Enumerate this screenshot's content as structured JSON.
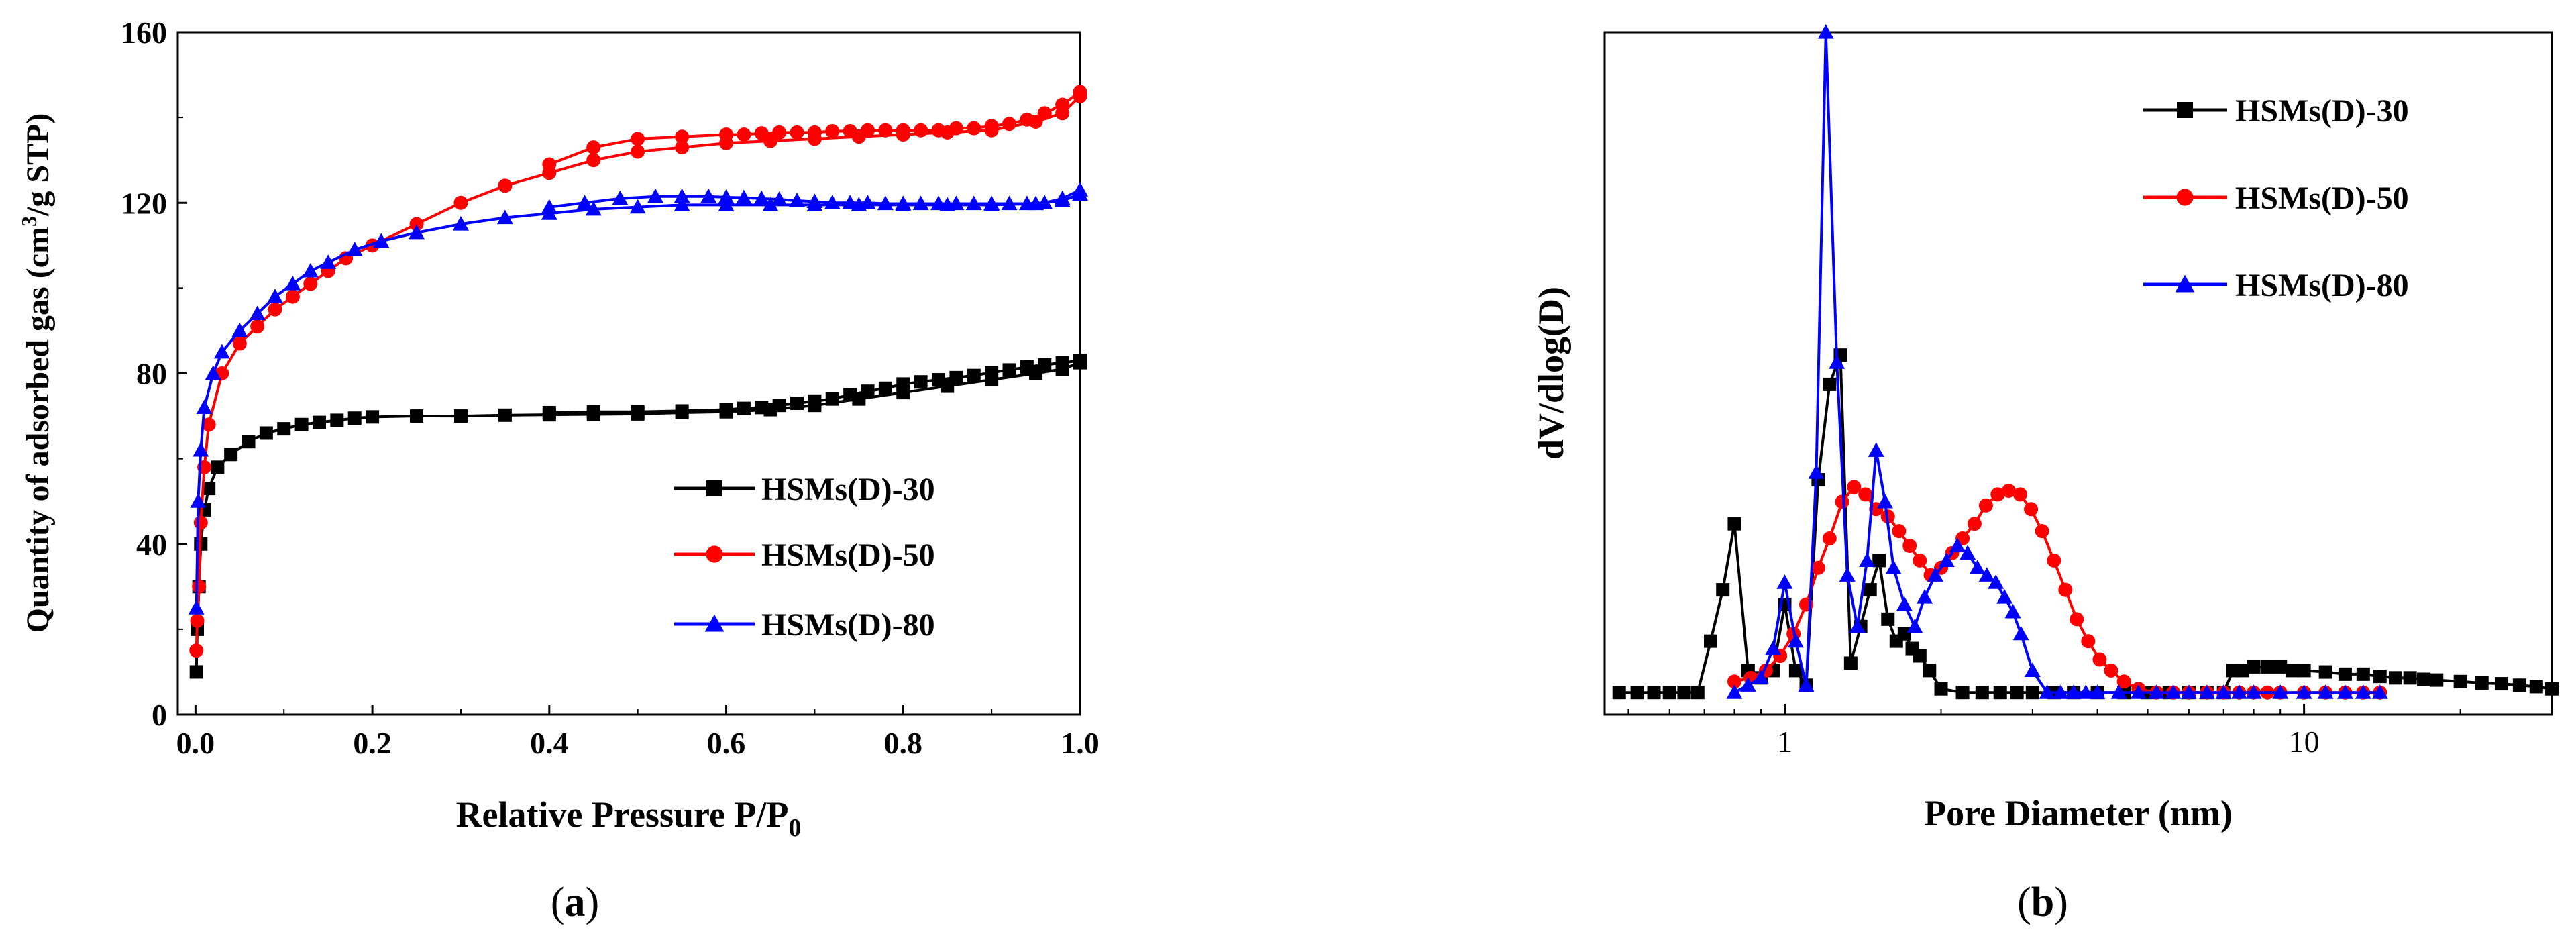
{
  "chart_data": [
    {
      "type": "line",
      "title": "",
      "panel_label": "(a)",
      "panel_letter": "a",
      "xlabel_main": "Relative Pressure P/P",
      "xlabel_sub": "0",
      "ylabel_pre": "Quantity of adsorbed gas (cm",
      "ylabel_sup": "3",
      "ylabel_post": "/g STP)",
      "xlim": [
        -0.02,
        1.0
      ],
      "ylim": [
        0,
        160
      ],
      "xticks": [
        0.0,
        0.2,
        0.4,
        0.6,
        0.8,
        1.0
      ],
      "xtick_labels": [
        "0.0",
        "0.2",
        "0.4",
        "0.6",
        "0.8",
        "1.0"
      ],
      "yticks": [
        0,
        40,
        80,
        120,
        160
      ],
      "ytick_labels": [
        "0",
        "40",
        "80",
        "120",
        "160"
      ],
      "legend_position": "lower-right",
      "series": [
        {
          "name": "HSMs(D)-30",
          "color": "#000000",
          "marker": "square",
          "adsorption": [
            [
              0.001,
              10
            ],
            [
              0.002,
              20
            ],
            [
              0.004,
              30
            ],
            [
              0.006,
              40
            ],
            [
              0.01,
              48
            ],
            [
              0.015,
              53
            ],
            [
              0.025,
              58
            ],
            [
              0.04,
              61
            ],
            [
              0.06,
              64
            ],
            [
              0.08,
              66
            ],
            [
              0.1,
              67
            ],
            [
              0.12,
              68
            ],
            [
              0.14,
              68.5
            ],
            [
              0.16,
              69
            ],
            [
              0.18,
              69.5
            ],
            [
              0.2,
              69.8
            ],
            [
              0.25,
              70
            ],
            [
              0.3,
              70
            ],
            [
              0.35,
              70.2
            ],
            [
              0.4,
              70.3
            ],
            [
              0.45,
              70.4
            ],
            [
              0.5,
              70.5
            ],
            [
              0.55,
              70.8
            ],
            [
              0.6,
              71
            ],
            [
              0.65,
              71.5
            ],
            [
              0.7,
              72.5
            ],
            [
              0.75,
              74
            ],
            [
              0.8,
              75.5
            ],
            [
              0.85,
              77
            ],
            [
              0.9,
              78.5
            ],
            [
              0.95,
              80
            ],
            [
              0.98,
              81
            ],
            [
              1.0,
              82.5
            ]
          ],
          "desorption": [
            [
              1.0,
              83
            ],
            [
              0.98,
              82.5
            ],
            [
              0.96,
              82
            ],
            [
              0.94,
              81.5
            ],
            [
              0.92,
              80.8
            ],
            [
              0.9,
              80.2
            ],
            [
              0.88,
              79.5
            ],
            [
              0.86,
              79
            ],
            [
              0.84,
              78.5
            ],
            [
              0.82,
              78
            ],
            [
              0.8,
              77.5
            ],
            [
              0.78,
              76.5
            ],
            [
              0.76,
              75.8
            ],
            [
              0.74,
              75
            ],
            [
              0.72,
              74
            ],
            [
              0.7,
              73.5
            ],
            [
              0.68,
              73
            ],
            [
              0.66,
              72.5
            ],
            [
              0.64,
              72
            ],
            [
              0.62,
              71.8
            ],
            [
              0.6,
              71.5
            ],
            [
              0.55,
              71.2
            ],
            [
              0.5,
              71
            ],
            [
              0.45,
              71
            ],
            [
              0.4,
              70.8
            ]
          ]
        },
        {
          "name": "HSMs(D)-50",
          "color": "#ff0000",
          "marker": "circle",
          "adsorption": [
            [
              0.001,
              15
            ],
            [
              0.002,
              22
            ],
            [
              0.004,
              30
            ],
            [
              0.006,
              45
            ],
            [
              0.01,
              58
            ],
            [
              0.015,
              68
            ],
            [
              0.03,
              80
            ],
            [
              0.05,
              87
            ],
            [
              0.07,
              91
            ],
            [
              0.09,
              95
            ],
            [
              0.11,
              98
            ],
            [
              0.13,
              101
            ],
            [
              0.15,
              104
            ],
            [
              0.17,
              107
            ],
            [
              0.2,
              110
            ],
            [
              0.25,
              115
            ],
            [
              0.3,
              120
            ],
            [
              0.35,
              124
            ],
            [
              0.4,
              127
            ],
            [
              0.45,
              130
            ],
            [
              0.5,
              132
            ],
            [
              0.55,
              133
            ],
            [
              0.6,
              134
            ],
            [
              0.65,
              134.5
            ],
            [
              0.7,
              135
            ],
            [
              0.75,
              135.5
            ],
            [
              0.8,
              136
            ],
            [
              0.85,
              136.5
            ],
            [
              0.9,
              137
            ],
            [
              0.95,
              139
            ],
            [
              0.98,
              141
            ],
            [
              1.0,
              145
            ]
          ],
          "desorption": [
            [
              1.0,
              146
            ],
            [
              0.98,
              143
            ],
            [
              0.96,
              141
            ],
            [
              0.94,
              139.5
            ],
            [
              0.92,
              138.5
            ],
            [
              0.9,
              138
            ],
            [
              0.88,
              137.5
            ],
            [
              0.86,
              137.5
            ],
            [
              0.84,
              137
            ],
            [
              0.82,
              137
            ],
            [
              0.8,
              137
            ],
            [
              0.78,
              137
            ],
            [
              0.76,
              137
            ],
            [
              0.74,
              136.8
            ],
            [
              0.72,
              136.8
            ],
            [
              0.7,
              136.5
            ],
            [
              0.68,
              136.5
            ],
            [
              0.66,
              136.5
            ],
            [
              0.64,
              136.3
            ],
            [
              0.62,
              136
            ],
            [
              0.6,
              136
            ],
            [
              0.55,
              135.5
            ],
            [
              0.5,
              135
            ],
            [
              0.45,
              133
            ],
            [
              0.4,
              129
            ]
          ]
        },
        {
          "name": "HSMs(D)-80",
          "color": "#0000ff",
          "marker": "triangle",
          "adsorption": [
            [
              0.001,
              25
            ],
            [
              0.003,
              50
            ],
            [
              0.006,
              62
            ],
            [
              0.01,
              72
            ],
            [
              0.02,
              80
            ],
            [
              0.03,
              85
            ],
            [
              0.05,
              90
            ],
            [
              0.07,
              94
            ],
            [
              0.09,
              98
            ],
            [
              0.11,
              101
            ],
            [
              0.13,
              104
            ],
            [
              0.15,
              106
            ],
            [
              0.18,
              109
            ],
            [
              0.21,
              111
            ],
            [
              0.25,
              113
            ],
            [
              0.3,
              115
            ],
            [
              0.35,
              116.5
            ],
            [
              0.4,
              117.5
            ],
            [
              0.45,
              118.5
            ],
            [
              0.5,
              119
            ],
            [
              0.55,
              119.5
            ],
            [
              0.6,
              119.5
            ],
            [
              0.65,
              119.5
            ],
            [
              0.7,
              119.5
            ],
            [
              0.75,
              119.5
            ],
            [
              0.8,
              119.5
            ],
            [
              0.85,
              119.5
            ],
            [
              0.9,
              119.5
            ],
            [
              0.95,
              119.8
            ],
            [
              0.98,
              120.5
            ],
            [
              1.0,
              122
            ]
          ],
          "desorption": [
            [
              1.0,
              123
            ],
            [
              0.98,
              121
            ],
            [
              0.96,
              120
            ],
            [
              0.94,
              119.8
            ],
            [
              0.92,
              119.8
            ],
            [
              0.9,
              119.8
            ],
            [
              0.88,
              119.8
            ],
            [
              0.86,
              119.8
            ],
            [
              0.84,
              119.8
            ],
            [
              0.82,
              119.8
            ],
            [
              0.8,
              119.8
            ],
            [
              0.78,
              119.8
            ],
            [
              0.76,
              120
            ],
            [
              0.74,
              120
            ],
            [
              0.72,
              120
            ],
            [
              0.7,
              120.3
            ],
            [
              0.68,
              120.5
            ],
            [
              0.66,
              120.8
            ],
            [
              0.64,
              121
            ],
            [
              0.62,
              121.2
            ],
            [
              0.6,
              121.3
            ],
            [
              0.58,
              121.5
            ],
            [
              0.55,
              121.5
            ],
            [
              0.52,
              121.5
            ],
            [
              0.48,
              121
            ],
            [
              0.44,
              120
            ],
            [
              0.4,
              119
            ]
          ]
        }
      ]
    },
    {
      "type": "line",
      "title": "",
      "panel_label": "(b)",
      "panel_letter": "b",
      "xlabel": "Pore Diameter (nm)",
      "ylabel": "dV/dlog(D)",
      "xscale": "log",
      "xlim": [
        0.45,
        30
      ],
      "ylim": [
        -0.3,
        9
      ],
      "xticks": [
        1,
        10
      ],
      "xtick_labels": [
        "1",
        "10"
      ],
      "yticks": [],
      "legend_position": "top-right",
      "series": [
        {
          "name": "HSMs(D)-30",
          "color": "#000000",
          "marker": "square",
          "x": [
            0.48,
            0.52,
            0.56,
            0.6,
            0.64,
            0.68,
            0.72,
            0.76,
            0.8,
            0.85,
            0.9,
            0.95,
            1.0,
            1.05,
            1.1,
            1.16,
            1.22,
            1.28,
            1.34,
            1.4,
            1.46,
            1.52,
            1.58,
            1.64,
            1.7,
            1.76,
            1.82,
            1.9,
            2.0,
            2.2,
            2.4,
            2.6,
            2.8,
            3.0,
            3.3,
            3.6,
            4.0,
            4.5,
            5.0,
            5.5,
            6.0,
            6.5,
            7.0,
            7.3,
            7.6,
            8.0,
            8.5,
            9.0,
            9.5,
            10,
            11,
            12,
            13,
            14,
            15,
            16,
            17,
            18,
            20,
            22,
            24,
            26,
            28,
            30
          ],
          "y": [
            0,
            0,
            0,
            0,
            0,
            0,
            0.7,
            1.4,
            2.3,
            0.3,
            0.2,
            0.3,
            1.2,
            0.3,
            0.1,
            2.9,
            4.2,
            4.6,
            0.4,
            0.9,
            1.4,
            1.8,
            1.0,
            0.7,
            0.8,
            0.6,
            0.5,
            0.3,
            0.05,
            0,
            0,
            0,
            0,
            0,
            0,
            0,
            0,
            0,
            0,
            0,
            0,
            0,
            0,
            0.3,
            0.3,
            0.35,
            0.35,
            0.35,
            0.3,
            0.3,
            0.28,
            0.25,
            0.25,
            0.22,
            0.2,
            0.2,
            0.18,
            0.17,
            0.15,
            0.13,
            0.12,
            0.1,
            0.08,
            0.05
          ]
        },
        {
          "name": "HSMs(D)-50",
          "color": "#ff0000",
          "marker": "circle",
          "x": [
            0.8,
            0.86,
            0.92,
            0.98,
            1.04,
            1.1,
            1.16,
            1.22,
            1.29,
            1.36,
            1.43,
            1.5,
            1.58,
            1.66,
            1.74,
            1.82,
            1.91,
            2.0,
            2.1,
            2.2,
            2.32,
            2.44,
            2.57,
            2.7,
            2.84,
            2.98,
            3.13,
            3.3,
            3.47,
            3.65,
            3.84,
            4.04,
            4.25,
            4.5,
            4.8,
            5.2,
            5.6,
            6.0,
            6.5,
            7.0,
            7.5,
            8.0,
            8.5,
            9.0,
            10,
            11,
            12,
            13,
            14
          ],
          "y": [
            0.15,
            0.2,
            0.3,
            0.5,
            0.8,
            1.2,
            1.7,
            2.1,
            2.6,
            2.8,
            2.7,
            2.5,
            2.4,
            2.2,
            2.0,
            1.8,
            1.6,
            1.7,
            1.9,
            2.1,
            2.3,
            2.55,
            2.7,
            2.75,
            2.7,
            2.5,
            2.2,
            1.8,
            1.4,
            1.0,
            0.7,
            0.45,
            0.3,
            0.15,
            0.05,
            0,
            0,
            0,
            0,
            0,
            0,
            0,
            0,
            0,
            0,
            0,
            0,
            0,
            0
          ]
        },
        {
          "name": "HSMs(D)-80",
          "color": "#0000ff",
          "marker": "triangle",
          "x": [
            0.8,
            0.85,
            0.9,
            0.95,
            1.0,
            1.05,
            1.1,
            1.15,
            1.2,
            1.26,
            1.32,
            1.38,
            1.44,
            1.5,
            1.56,
            1.62,
            1.7,
            1.78,
            1.86,
            1.95,
            2.05,
            2.15,
            2.25,
            2.35,
            2.45,
            2.55,
            2.65,
            2.75,
            2.85,
            3.0,
            3.2,
            3.4,
            3.6,
            3.8,
            4.0,
            4.4,
            4.8,
            5.2,
            5.6,
            6,
            6.5,
            7,
            7.5,
            8,
            9,
            10,
            11,
            12,
            13,
            14
          ],
          "y": [
            0,
            0.1,
            0.2,
            0.6,
            1.5,
            0.7,
            0.1,
            3.0,
            9.0,
            4.5,
            1.6,
            0.9,
            1.8,
            3.3,
            2.6,
            1.7,
            1.2,
            0.9,
            1.3,
            1.6,
            1.8,
            2.0,
            1.9,
            1.7,
            1.6,
            1.5,
            1.3,
            1.1,
            0.8,
            0.3,
            0,
            0,
            0,
            0,
            0,
            0,
            0,
            0,
            0,
            0,
            0,
            0,
            0,
            0,
            0,
            0,
            0,
            0,
            0,
            0
          ]
        }
      ]
    }
  ]
}
